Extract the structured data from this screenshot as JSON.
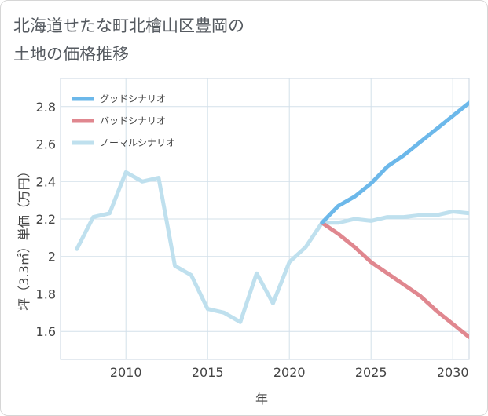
{
  "title": "北海道せたな町北檜山区豊岡の\n土地の価格推移",
  "chart_data": {
    "type": "line",
    "xlabel": "年",
    "ylabel": "坪（3.3㎡）単価（万円）",
    "xlim": [
      2006,
      2031
    ],
    "ylim": [
      1.45,
      2.95
    ],
    "x_ticks": [
      2010,
      2015,
      2020,
      2025,
      2030
    ],
    "x_tick_labels": [
      "2010",
      "2015",
      "2020",
      "2025",
      "2030"
    ],
    "y_ticks": [
      1.6,
      1.8,
      2.0,
      2.2,
      2.4,
      2.6,
      2.8
    ],
    "y_tick_labels": [
      "1.6",
      "1.8",
      "2",
      "2.2",
      "2.4",
      "2.6",
      "2.8"
    ],
    "grid": true,
    "legend_position": "top-left",
    "series": [
      {
        "name": "グッドシナリオ",
        "color": "#6cb8ea",
        "x": [
          2022,
          2023,
          2024,
          2025,
          2026,
          2027,
          2028,
          2029,
          2030,
          2031
        ],
        "y": [
          2.18,
          2.27,
          2.32,
          2.39,
          2.48,
          2.54,
          2.61,
          2.68,
          2.75,
          2.82
        ]
      },
      {
        "name": "バッドシナリオ",
        "color": "#e0878f",
        "x": [
          2022,
          2023,
          2024,
          2025,
          2026,
          2027,
          2028,
          2029,
          2030,
          2031
        ],
        "y": [
          2.18,
          2.12,
          2.05,
          1.97,
          1.91,
          1.85,
          1.79,
          1.71,
          1.64,
          1.57
        ]
      },
      {
        "name": "ノーマルシナリオ",
        "color": "#bfe0ee",
        "x": [
          2007,
          2008,
          2009,
          2010,
          2011,
          2012,
          2013,
          2014,
          2015,
          2016,
          2017,
          2018,
          2019,
          2020,
          2021,
          2022,
          2023,
          2024,
          2025,
          2026,
          2027,
          2028,
          2029,
          2030,
          2031
        ],
        "y": [
          2.04,
          2.21,
          2.23,
          2.45,
          2.4,
          2.42,
          1.95,
          1.9,
          1.72,
          1.7,
          1.65,
          1.91,
          1.75,
          1.97,
          2.05,
          2.18,
          2.18,
          2.2,
          2.19,
          2.21,
          2.21,
          2.22,
          2.22,
          2.24,
          2.23
        ]
      }
    ]
  }
}
